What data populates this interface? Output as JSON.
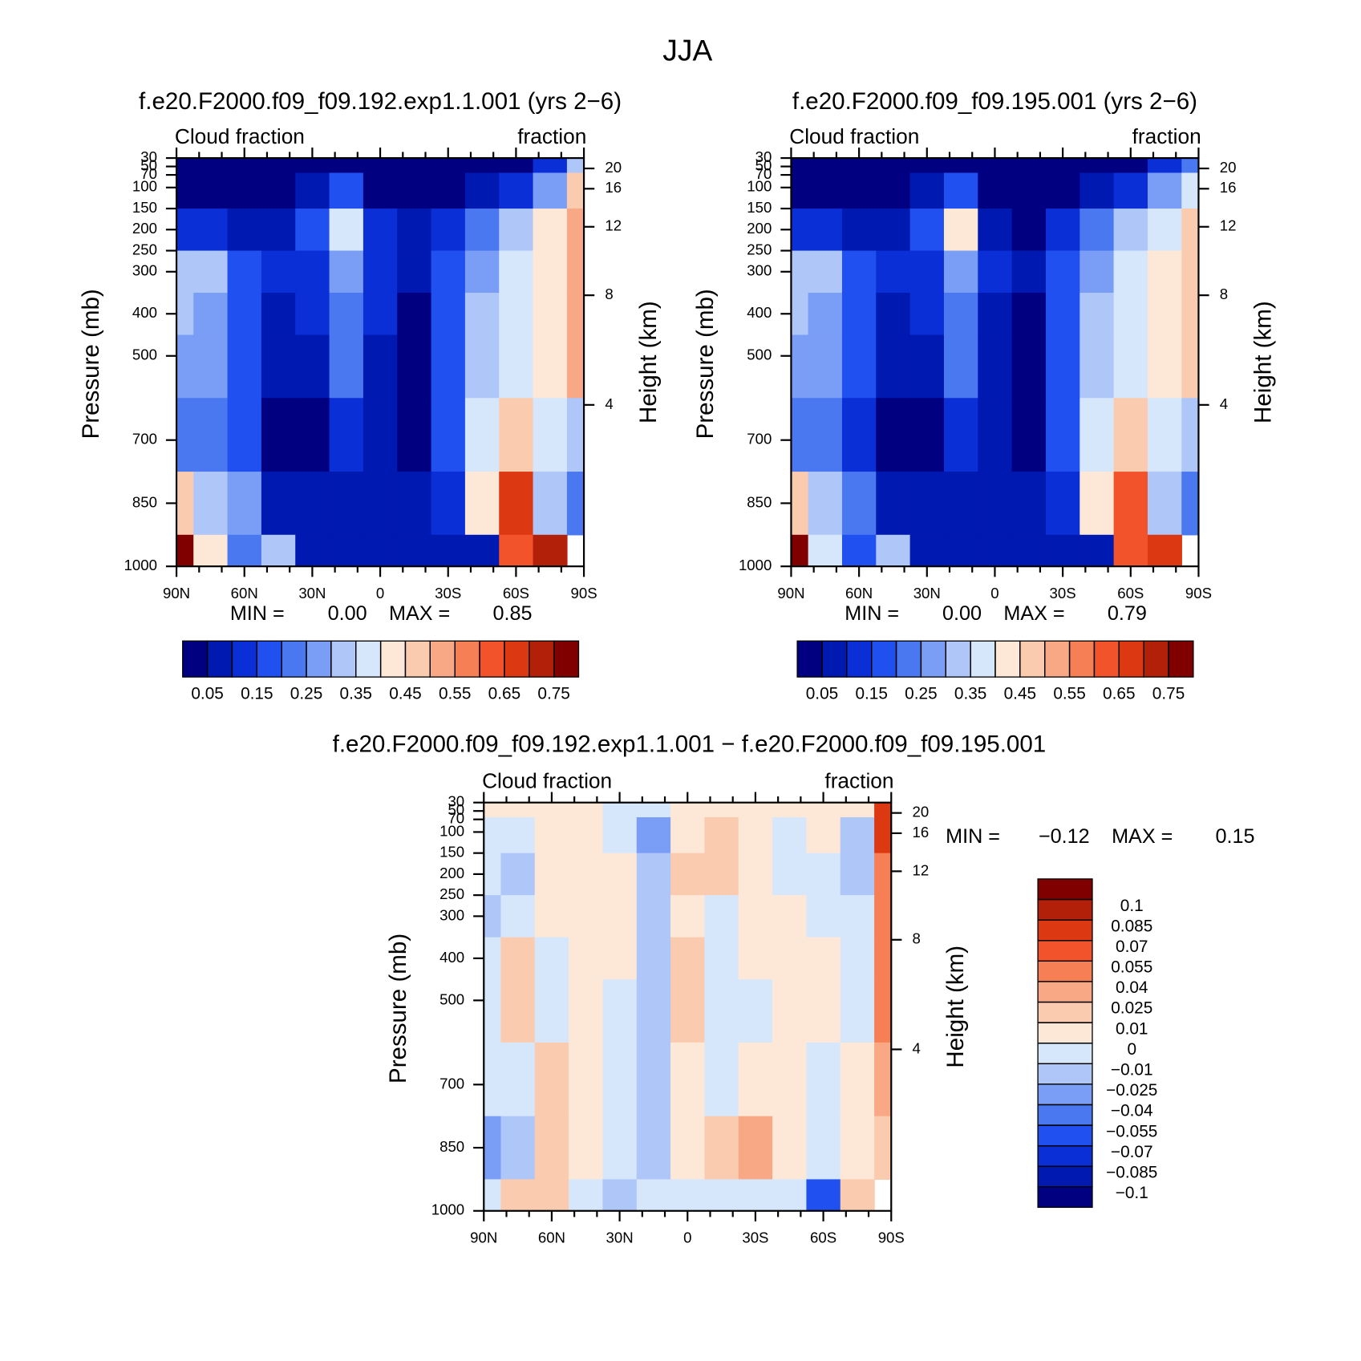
{
  "title": "JJA",
  "chart_data": [
    {
      "type": "contour",
      "title": "f.e20.F2000.f09_f09.192.exp1.1.001 (yrs 2−6)",
      "left_label": "Cloud fraction",
      "right_label": "fraction",
      "ylabel": "Pressure (mb)",
      "y2label": "Height (km)",
      "min_text": "MIN =",
      "min": {
        "value": 0,
        "label": "0.00"
      },
      "max_text": "MAX =",
      "max": {
        "value": 0.85,
        "label": "0.85"
      },
      "x": [
        90,
        75,
        60,
        45,
        30,
        15,
        0,
        -15,
        -30,
        -45,
        -60,
        -75,
        -90
      ],
      "y": [
        30,
        100,
        200,
        300,
        400,
        500,
        700,
        850,
        1000
      ],
      "z": [
        [
          0.02,
          0.02,
          0.02,
          0.02,
          0.02,
          0.02,
          0.02,
          0.02,
          0.02,
          0.02,
          0.03,
          0.1,
          0.3
        ],
        [
          0.03,
          0.03,
          0.03,
          0.03,
          0.05,
          0.15,
          0.03,
          0.02,
          0.03,
          0.05,
          0.12,
          0.25,
          0.45
        ],
        [
          0.1,
          0.1,
          0.07,
          0.08,
          0.15,
          0.38,
          0.1,
          0.05,
          0.12,
          0.22,
          0.3,
          0.4,
          0.5
        ],
        [
          0.3,
          0.3,
          0.15,
          0.1,
          0.12,
          0.25,
          0.12,
          0.05,
          0.15,
          0.28,
          0.38,
          0.42,
          0.5
        ],
        [
          0.3,
          0.28,
          0.15,
          0.08,
          0.1,
          0.2,
          0.1,
          0.03,
          0.15,
          0.3,
          0.38,
          0.42,
          0.5
        ],
        [
          0.25,
          0.25,
          0.15,
          0.06,
          0.07,
          0.22,
          0.08,
          0.02,
          0.15,
          0.32,
          0.38,
          0.42,
          0.5
        ],
        [
          0.2,
          0.22,
          0.15,
          0.04,
          0.02,
          0.1,
          0.05,
          0.02,
          0.15,
          0.35,
          0.45,
          0.38,
          0.3
        ],
        [
          0.45,
          0.3,
          0.25,
          0.08,
          0.06,
          0.08,
          0.08,
          0.08,
          0.12,
          0.4,
          0.65,
          0.3,
          0.2
        ],
        [
          0.8,
          0.4,
          0.2,
          0.3,
          0.05,
          0.05,
          0.05,
          0.05,
          0.05,
          0.08,
          0.6,
          0.7,
          null
        ]
      ],
      "xlim": [
        90,
        -90
      ],
      "ylim": [
        1000,
        30
      ],
      "xticks": [
        {
          "value": 90,
          "label": "90N"
        },
        {
          "value": 60,
          "label": "60N"
        },
        {
          "value": 30,
          "label": "30N"
        },
        0,
        {
          "value": -30,
          "label": "30S"
        },
        {
          "value": -60,
          "label": "60S"
        },
        {
          "value": -90,
          "label": "90S"
        }
      ],
      "yticks": [
        30,
        50,
        70,
        100,
        150,
        200,
        250,
        300,
        400,
        500,
        700,
        850,
        1000
      ],
      "y2ticks": [
        20,
        16,
        12,
        8,
        4
      ],
      "levels": [
        0.05,
        0.1,
        0.15,
        0.2,
        0.25,
        0.3,
        0.35,
        0.4,
        0.45,
        0.5,
        0.55,
        0.6,
        0.65,
        0.7,
        0.75
      ],
      "colorbar_ticks": [
        0.05,
        0.15,
        0.25,
        0.35,
        0.45,
        0.55,
        0.65,
        0.75
      ],
      "colorbar": "bottom",
      "colors": [
        "#000080",
        "#0019b0",
        "#0a2fd6",
        "#2050f0",
        "#4a78f0",
        "#7a9df5",
        "#aec6f8",
        "#d6e7fb",
        "#fde8d8",
        "#fbcbb0",
        "#f8a885",
        "#f67f55",
        "#f2532a",
        "#dc3812",
        "#b3200a",
        "#800000"
      ]
    },
    {
      "type": "contour",
      "title": "f.e20.F2000.f09_f09.195.001 (yrs 2−6)",
      "left_label": "Cloud fraction",
      "right_label": "fraction",
      "ylabel": "Pressure (mb)",
      "y2label": "Height (km)",
      "min_text": "MIN =",
      "min": {
        "value": 0,
        "label": "0.00"
      },
      "max_text": "MAX =",
      "max": {
        "value": 0.79,
        "label": "0.79"
      },
      "x": [
        90,
        75,
        60,
        45,
        30,
        15,
        0,
        -15,
        -30,
        -45,
        -60,
        -75,
        -90
      ],
      "y": [
        30,
        100,
        200,
        300,
        400,
        500,
        700,
        850,
        1000
      ],
      "z": [
        [
          0.02,
          0.02,
          0.02,
          0.02,
          0.02,
          0.02,
          0.02,
          0.02,
          0.02,
          0.02,
          0.03,
          0.1,
          0.22
        ],
        [
          0.03,
          0.03,
          0.03,
          0.03,
          0.05,
          0.18,
          0.03,
          0.02,
          0.03,
          0.05,
          0.12,
          0.25,
          0.38
        ],
        [
          0.1,
          0.12,
          0.07,
          0.08,
          0.15,
          0.4,
          0.08,
          0.04,
          0.12,
          0.22,
          0.3,
          0.38,
          0.45
        ],
        [
          0.3,
          0.3,
          0.15,
          0.1,
          0.12,
          0.27,
          0.1,
          0.05,
          0.15,
          0.28,
          0.38,
          0.42,
          0.48
        ],
        [
          0.3,
          0.26,
          0.15,
          0.08,
          0.1,
          0.22,
          0.08,
          0.03,
          0.15,
          0.3,
          0.38,
          0.42,
          0.47
        ],
        [
          0.25,
          0.25,
          0.15,
          0.06,
          0.07,
          0.24,
          0.06,
          0.02,
          0.15,
          0.32,
          0.38,
          0.42,
          0.46
        ],
        [
          0.2,
          0.22,
          0.13,
          0.04,
          0.02,
          0.12,
          0.05,
          0.02,
          0.15,
          0.35,
          0.45,
          0.38,
          0.3
        ],
        [
          0.48,
          0.3,
          0.23,
          0.08,
          0.06,
          0.09,
          0.08,
          0.07,
          0.1,
          0.4,
          0.63,
          0.3,
          0.2
        ],
        [
          0.78,
          0.38,
          0.18,
          0.3,
          0.05,
          0.05,
          0.05,
          0.05,
          0.05,
          0.08,
          0.62,
          0.65,
          null
        ]
      ],
      "xlim": [
        90,
        -90
      ],
      "ylim": [
        1000,
        30
      ],
      "xticks": [
        {
          "value": 90,
          "label": "90N"
        },
        {
          "value": 60,
          "label": "60N"
        },
        {
          "value": 30,
          "label": "30N"
        },
        0,
        {
          "value": -30,
          "label": "30S"
        },
        {
          "value": -60,
          "label": "60S"
        },
        {
          "value": -90,
          "label": "90S"
        }
      ],
      "yticks": [
        30,
        50,
        70,
        100,
        150,
        200,
        250,
        300,
        400,
        500,
        700,
        850,
        1000
      ],
      "y2ticks": [
        20,
        16,
        12,
        8,
        4
      ],
      "levels": [
        0.05,
        0.1,
        0.15,
        0.2,
        0.25,
        0.3,
        0.35,
        0.4,
        0.45,
        0.5,
        0.55,
        0.6,
        0.65,
        0.7,
        0.75
      ],
      "colorbar_ticks": [
        0.05,
        0.15,
        0.25,
        0.35,
        0.45,
        0.55,
        0.65,
        0.75
      ],
      "colorbar": "bottom",
      "colors": [
        "#000080",
        "#0019b0",
        "#0a2fd6",
        "#2050f0",
        "#4a78f0",
        "#7a9df5",
        "#aec6f8",
        "#d6e7fb",
        "#fde8d8",
        "#fbcbb0",
        "#f8a885",
        "#f67f55",
        "#f2532a",
        "#dc3812",
        "#b3200a",
        "#800000"
      ]
    },
    {
      "type": "contour",
      "title": "f.e20.F2000.f09_f09.192.exp1.1.001 − f.e20.F2000.f09_f09.195.001",
      "left_label": "Cloud fraction",
      "right_label": "fraction",
      "ylabel": "Pressure (mb)",
      "y2label": "Height (km)",
      "min_text": "MIN =",
      "min": {
        "value": -0.12,
        "label": "−0.12"
      },
      "max_text": "MAX =",
      "max": {
        "value": 0.15,
        "label": "0.15"
      },
      "x": [
        90,
        75,
        60,
        45,
        30,
        15,
        0,
        -15,
        -30,
        -45,
        -60,
        -75,
        -90
      ],
      "y": [
        30,
        100,
        200,
        300,
        400,
        500,
        700,
        850,
        1000
      ],
      "z": [
        [
          0.005,
          0.005,
          0.005,
          0.005,
          -0.005,
          -0.005,
          0.005,
          0.005,
          0.005,
          0.005,
          0.005,
          0.005,
          0.08
        ],
        [
          -0.005,
          -0.005,
          0.005,
          0.005,
          -0.005,
          -0.03,
          0.005,
          0.012,
          0.005,
          -0.005,
          0.005,
          -0.012,
          0.07
        ],
        [
          -0.005,
          -0.02,
          0.005,
          0.005,
          0.005,
          -0.015,
          0.02,
          0.02,
          0.005,
          -0.005,
          -0.005,
          -0.02,
          0.04
        ],
        [
          -0.02,
          -0.005,
          0.005,
          0.005,
          0.005,
          -0.015,
          0.005,
          -0.005,
          0.005,
          0.005,
          -0.005,
          -0.005,
          0.05
        ],
        [
          -0.005,
          0.02,
          -0.005,
          0.005,
          0.005,
          -0.02,
          0.02,
          -0.005,
          0.005,
          0.005,
          0.005,
          -0.005,
          0.04
        ],
        [
          -0.005,
          0.012,
          -0.005,
          0.005,
          -0.005,
          -0.015,
          0.02,
          -0.005,
          -0.005,
          0.005,
          0.005,
          -0.005,
          0.04
        ],
        [
          -0.005,
          -0.005,
          0.02,
          0.005,
          -0.005,
          -0.015,
          0.005,
          -0.005,
          0.005,
          0.005,
          -0.005,
          0.005,
          0.03
        ],
        [
          -0.04,
          -0.012,
          0.02,
          0.005,
          -0.005,
          -0.015,
          0.005,
          0.012,
          0.025,
          0.005,
          -0.005,
          0.005,
          0.012
        ],
        [
          -0.005,
          0.012,
          0.012,
          -0.005,
          -0.012,
          -0.005,
          -0.005,
          -0.005,
          -0.005,
          -0.005,
          -0.06,
          0.02,
          null
        ]
      ],
      "xlim": [
        90,
        -90
      ],
      "ylim": [
        1000,
        30
      ],
      "xticks": [
        {
          "value": 90,
          "label": "90N"
        },
        {
          "value": 60,
          "label": "60N"
        },
        {
          "value": 30,
          "label": "30N"
        },
        0,
        {
          "value": -30,
          "label": "30S"
        },
        {
          "value": -60,
          "label": "60S"
        },
        {
          "value": -90,
          "label": "90S"
        }
      ],
      "yticks": [
        30,
        50,
        70,
        100,
        150,
        200,
        250,
        300,
        400,
        500,
        700,
        850,
        1000
      ],
      "y2ticks": [
        20,
        16,
        12,
        8,
        4
      ],
      "levels": [
        {
          "value": -0.1,
          "label": "−0.1"
        },
        {
          "value": -0.085,
          "label": "−0.085"
        },
        {
          "value": -0.07,
          "label": "−0.07"
        },
        {
          "value": -0.055,
          "label": "−0.055"
        },
        {
          "value": -0.04,
          "label": "−0.04"
        },
        {
          "value": -0.025,
          "label": "−0.025"
        },
        {
          "value": -0.01,
          "label": "−0.01"
        },
        0,
        0.01,
        0.025,
        0.04,
        0.055,
        0.07,
        0.085,
        0.1
      ],
      "colorbar": "right",
      "colors": [
        "#000080",
        "#0019b0",
        "#0a2fd6",
        "#2050f0",
        "#4a78f0",
        "#7a9df5",
        "#aec6f8",
        "#d6e7fb",
        "#fde8d8",
        "#fbcbb0",
        "#f8a885",
        "#f67f55",
        "#f2532a",
        "#dc3812",
        "#b3200a",
        "#800000"
      ]
    }
  ]
}
